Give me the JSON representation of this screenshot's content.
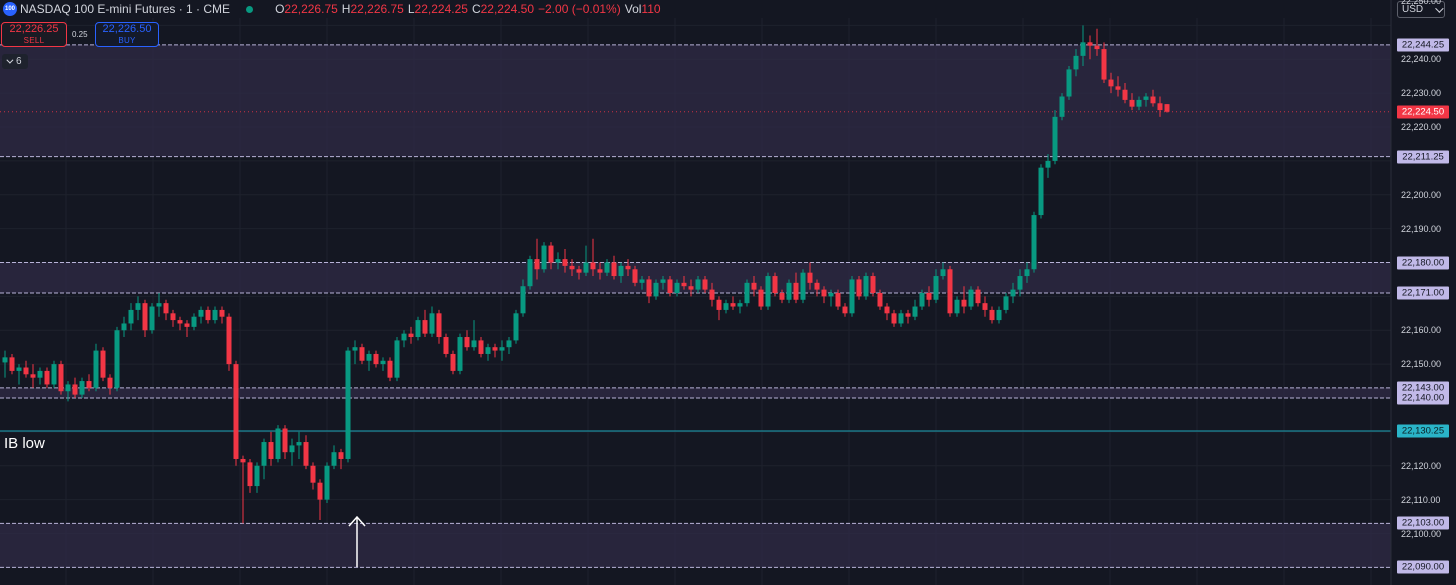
{
  "header": {
    "symbol_icon": "100",
    "title": "NASDAQ 100 E-mini Futures · 1 · CME",
    "status": "market-open-dot",
    "ohlc": {
      "o_label": "O",
      "o": "22,226.75",
      "h_label": "H",
      "h": "22,226.75",
      "l_label": "L",
      "l": "22,224.25",
      "c_label": "C",
      "c": "22,224.50",
      "change": "−2.00 (−0.01%)",
      "vol_label": "Vol",
      "vol": "110"
    },
    "currency": "USD"
  },
  "trading": {
    "sell_price": "22,226.25",
    "sell_label": "SELL",
    "spread": "0.25",
    "buy_price": "22,226.50",
    "buy_label": "BUY"
  },
  "indicators": {
    "collapsed_count": "6"
  },
  "annotations": {
    "ib_low": "IB low"
  },
  "colors": {
    "background": "#141722",
    "bull": "#089981",
    "bear": "#f23645",
    "zone_fill": "#2f2b45",
    "zone_line": "#b8b3d8",
    "ib_line": "#1ba3b5",
    "ib_tag": "#2ab4c8",
    "zone_tag": "#c1b9e8",
    "last_price_tag": "#f23645"
  },
  "price_axis": {
    "ticks": [
      "22,240.00",
      "22,230.00",
      "22,220.00",
      "22,200.00",
      "22,190.00",
      "22,160.00",
      "22,150.00",
      "22,120.00",
      "22,110.00",
      "22,100.00"
    ],
    "top_partial": "22,250.00"
  },
  "levels": [
    {
      "price": 22244.25,
      "label": "22,244.25",
      "kind": "zone"
    },
    {
      "price": 22224.5,
      "label": "22,224.50",
      "kind": "last"
    },
    {
      "price": 22211.25,
      "label": "22,211.25",
      "kind": "zone"
    },
    {
      "price": 22180.0,
      "label": "22,180.00",
      "kind": "zone"
    },
    {
      "price": 22171.0,
      "label": "22,171.00",
      "kind": "zone"
    },
    {
      "price": 22143.0,
      "label": "22,143.00",
      "kind": "zone"
    },
    {
      "price": 22140.0,
      "label": "22,140.00",
      "kind": "zone"
    },
    {
      "price": 22130.25,
      "label": "22,130.25",
      "kind": "ib"
    },
    {
      "price": 22103.0,
      "label": "22,103.00",
      "kind": "zone"
    },
    {
      "price": 22090.0,
      "label": "22,090.00",
      "kind": "zone"
    }
  ],
  "zones": [
    {
      "from": 22244.25,
      "to": 22211.25
    },
    {
      "from": 22180.0,
      "to": 22171.0
    },
    {
      "from": 22143.0,
      "to": 22140.0
    },
    {
      "from": 22103.0,
      "to": 22090.0
    }
  ],
  "chart_data": {
    "type": "candlestick",
    "title": "NASDAQ 100 E-mini Futures · 1 · CME",
    "ylim": [
      22090,
      22250
    ],
    "grid": true,
    "candles": [
      {
        "o": 22150.5,
        "h": 22154,
        "l": 22146,
        "c": 22152
      },
      {
        "o": 22152,
        "h": 22153,
        "l": 22147,
        "c": 22148
      },
      {
        "o": 22148,
        "h": 22150,
        "l": 22144,
        "c": 22149
      },
      {
        "o": 22149,
        "h": 22151,
        "l": 22146,
        "c": 22147
      },
      {
        "o": 22147,
        "h": 22150,
        "l": 22143,
        "c": 22146
      },
      {
        "o": 22146,
        "h": 22149,
        "l": 22144,
        "c": 22148
      },
      {
        "o": 22148,
        "h": 22149,
        "l": 22143,
        "c": 22144
      },
      {
        "o": 22144,
        "h": 22151,
        "l": 22143,
        "c": 22150
      },
      {
        "o": 22150,
        "h": 22151,
        "l": 22141,
        "c": 22142
      },
      {
        "o": 22142,
        "h": 22145,
        "l": 22139,
        "c": 22144
      },
      {
        "o": 22144,
        "h": 22146,
        "l": 22140,
        "c": 22141
      },
      {
        "o": 22141,
        "h": 22146,
        "l": 22140,
        "c": 22145
      },
      {
        "o": 22145,
        "h": 22147,
        "l": 22142,
        "c": 22143
      },
      {
        "o": 22143,
        "h": 22156,
        "l": 22142,
        "c": 22154
      },
      {
        "o": 22154,
        "h": 22155,
        "l": 22145,
        "c": 22146
      },
      {
        "o": 22146,
        "h": 22147,
        "l": 22141,
        "c": 22143
      },
      {
        "o": 22143,
        "h": 22161,
        "l": 22142,
        "c": 22160
      },
      {
        "o": 22160,
        "h": 22164,
        "l": 22158,
        "c": 22162
      },
      {
        "o": 22162,
        "h": 22168,
        "l": 22160,
        "c": 22166
      },
      {
        "o": 22166,
        "h": 22170,
        "l": 22163,
        "c": 22168
      },
      {
        "o": 22168,
        "h": 22169,
        "l": 22158,
        "c": 22160
      },
      {
        "o": 22160,
        "h": 22168,
        "l": 22159,
        "c": 22167
      },
      {
        "o": 22167,
        "h": 22171,
        "l": 22164,
        "c": 22168
      },
      {
        "o": 22168,
        "h": 22169,
        "l": 22163,
        "c": 22165
      },
      {
        "o": 22165,
        "h": 22166,
        "l": 22161,
        "c": 22163
      },
      {
        "o": 22163,
        "h": 22164,
        "l": 22160,
        "c": 22162
      },
      {
        "o": 22162,
        "h": 22163,
        "l": 22158,
        "c": 22161
      },
      {
        "o": 22161,
        "h": 22165,
        "l": 22160,
        "c": 22164
      },
      {
        "o": 22164,
        "h": 22167,
        "l": 22162,
        "c": 22166
      },
      {
        "o": 22166,
        "h": 22167,
        "l": 22162,
        "c": 22163
      },
      {
        "o": 22163,
        "h": 22167,
        "l": 22162,
        "c": 22166
      },
      {
        "o": 22166,
        "h": 22167,
        "l": 22162,
        "c": 22164
      },
      {
        "o": 22164,
        "h": 22165,
        "l": 22148,
        "c": 22150
      },
      {
        "o": 22150,
        "h": 22151,
        "l": 22120,
        "c": 22122
      },
      {
        "o": 22122,
        "h": 22123,
        "l": 22103,
        "c": 22121
      },
      {
        "o": 22121,
        "h": 22122,
        "l": 22112,
        "c": 22114
      },
      {
        "o": 22114,
        "h": 22121,
        "l": 22112,
        "c": 22120
      },
      {
        "o": 22120,
        "h": 22128,
        "l": 22116,
        "c": 22127
      },
      {
        "o": 22127,
        "h": 22130,
        "l": 22120,
        "c": 22122
      },
      {
        "o": 22122,
        "h": 22132,
        "l": 22121,
        "c": 22131
      },
      {
        "o": 22131,
        "h": 22132,
        "l": 22122,
        "c": 22124
      },
      {
        "o": 22124,
        "h": 22128,
        "l": 22120,
        "c": 22126
      },
      {
        "o": 22126,
        "h": 22130,
        "l": 22122,
        "c": 22127
      },
      {
        "o": 22127,
        "h": 22129,
        "l": 22119,
        "c": 22120
      },
      {
        "o": 22120,
        "h": 22121,
        "l": 22113,
        "c": 22115
      },
      {
        "o": 22115,
        "h": 22116,
        "l": 22104,
        "c": 22110
      },
      {
        "o": 22110,
        "h": 22121,
        "l": 22109,
        "c": 22120
      },
      {
        "o": 22120,
        "h": 22126,
        "l": 22119,
        "c": 22124
      },
      {
        "o": 22124,
        "h": 22125,
        "l": 22119,
        "c": 22122
      },
      {
        "o": 22122,
        "h": 22155,
        "l": 22121,
        "c": 22154
      },
      {
        "o": 22154,
        "h": 22157,
        "l": 22150,
        "c": 22155
      },
      {
        "o": 22155,
        "h": 22156,
        "l": 22150,
        "c": 22151
      },
      {
        "o": 22151,
        "h": 22154,
        "l": 22148,
        "c": 22153
      },
      {
        "o": 22153,
        "h": 22154,
        "l": 22149,
        "c": 22150
      },
      {
        "o": 22150,
        "h": 22152,
        "l": 22148,
        "c": 22151
      },
      {
        "o": 22151,
        "h": 22152,
        "l": 22145,
        "c": 22146
      },
      {
        "o": 22146,
        "h": 22158,
        "l": 22145,
        "c": 22157
      },
      {
        "o": 22157,
        "h": 22160,
        "l": 22155,
        "c": 22159
      },
      {
        "o": 22159,
        "h": 22161,
        "l": 22156,
        "c": 22158
      },
      {
        "o": 22158,
        "h": 22164,
        "l": 22157,
        "c": 22163
      },
      {
        "o": 22163,
        "h": 22166,
        "l": 22158,
        "c": 22159
      },
      {
        "o": 22159,
        "h": 22167,
        "l": 22158,
        "c": 22165
      },
      {
        "o": 22165,
        "h": 22166,
        "l": 22156,
        "c": 22158
      },
      {
        "o": 22158,
        "h": 22159,
        "l": 22152,
        "c": 22153
      },
      {
        "o": 22153,
        "h": 22154,
        "l": 22147,
        "c": 22148
      },
      {
        "o": 22148,
        "h": 22159,
        "l": 22147,
        "c": 22158
      },
      {
        "o": 22158,
        "h": 22160,
        "l": 22154,
        "c": 22155
      },
      {
        "o": 22155,
        "h": 22163,
        "l": 22154,
        "c": 22157
      },
      {
        "o": 22157,
        "h": 22158,
        "l": 22152,
        "c": 22153
      },
      {
        "o": 22153,
        "h": 22156,
        "l": 22151,
        "c": 22155
      },
      {
        "o": 22155,
        "h": 22156,
        "l": 22152,
        "c": 22154
      },
      {
        "o": 22154,
        "h": 22157,
        "l": 22151,
        "c": 22155
      },
      {
        "o": 22155,
        "h": 22158,
        "l": 22153,
        "c": 22157
      },
      {
        "o": 22157,
        "h": 22166,
        "l": 22156,
        "c": 22165
      },
      {
        "o": 22165,
        "h": 22175,
        "l": 22164,
        "c": 22173
      },
      {
        "o": 22173,
        "h": 22182,
        "l": 22172,
        "c": 22181
      },
      {
        "o": 22181,
        "h": 22187,
        "l": 22175,
        "c": 22178
      },
      {
        "o": 22178,
        "h": 22186,
        "l": 22177,
        "c": 22185
      },
      {
        "o": 22185,
        "h": 22186,
        "l": 22178,
        "c": 22180
      },
      {
        "o": 22180,
        "h": 22183,
        "l": 22178,
        "c": 22181
      },
      {
        "o": 22181,
        "h": 22184,
        "l": 22177,
        "c": 22179
      },
      {
        "o": 22179,
        "h": 22181,
        "l": 22176,
        "c": 22178
      },
      {
        "o": 22178,
        "h": 22179,
        "l": 22175,
        "c": 22177
      },
      {
        "o": 22177,
        "h": 22185,
        "l": 22176,
        "c": 22180
      },
      {
        "o": 22180,
        "h": 22187,
        "l": 22176,
        "c": 22178
      },
      {
        "o": 22178,
        "h": 22180,
        "l": 22175,
        "c": 22177
      },
      {
        "o": 22177,
        "h": 22181,
        "l": 22176,
        "c": 22180
      },
      {
        "o": 22180,
        "h": 22182,
        "l": 22175,
        "c": 22176
      },
      {
        "o": 22176,
        "h": 22180,
        "l": 22174,
        "c": 22179
      },
      {
        "o": 22179,
        "h": 22181,
        "l": 22176,
        "c": 22178
      },
      {
        "o": 22178,
        "h": 22179,
        "l": 22173,
        "c": 22174
      },
      {
        "o": 22174,
        "h": 22176,
        "l": 22172,
        "c": 22175
      },
      {
        "o": 22175,
        "h": 22176,
        "l": 22168,
        "c": 22170
      },
      {
        "o": 22170,
        "h": 22175,
        "l": 22169,
        "c": 22174
      },
      {
        "o": 22174,
        "h": 22176,
        "l": 22172,
        "c": 22175
      },
      {
        "o": 22175,
        "h": 22176,
        "l": 22170,
        "c": 22171
      },
      {
        "o": 22171,
        "h": 22175,
        "l": 22170,
        "c": 22174
      },
      {
        "o": 22174,
        "h": 22176,
        "l": 22172,
        "c": 22173
      },
      {
        "o": 22173,
        "h": 22175,
        "l": 22170,
        "c": 22172
      },
      {
        "o": 22172,
        "h": 22176,
        "l": 22171,
        "c": 22175
      },
      {
        "o": 22175,
        "h": 22176,
        "l": 22171,
        "c": 22172
      },
      {
        "o": 22172,
        "h": 22174,
        "l": 22167,
        "c": 22169
      },
      {
        "o": 22169,
        "h": 22170,
        "l": 22163,
        "c": 22166
      },
      {
        "o": 22166,
        "h": 22169,
        "l": 22165,
        "c": 22168
      },
      {
        "o": 22168,
        "h": 22170,
        "l": 22166,
        "c": 22167
      },
      {
        "o": 22167,
        "h": 22169,
        "l": 22165,
        "c": 22168
      },
      {
        "o": 22168,
        "h": 22175,
        "l": 22167,
        "c": 22174
      },
      {
        "o": 22174,
        "h": 22176,
        "l": 22170,
        "c": 22172
      },
      {
        "o": 22172,
        "h": 22173,
        "l": 22166,
        "c": 22167
      },
      {
        "o": 22167,
        "h": 22177,
        "l": 22166,
        "c": 22176
      },
      {
        "o": 22176,
        "h": 22177,
        "l": 22170,
        "c": 22171
      },
      {
        "o": 22171,
        "h": 22172,
        "l": 22168,
        "c": 22169
      },
      {
        "o": 22169,
        "h": 22175,
        "l": 22168,
        "c": 22174
      },
      {
        "o": 22174,
        "h": 22177,
        "l": 22168,
        "c": 22169
      },
      {
        "o": 22169,
        "h": 22178,
        "l": 22168,
        "c": 22177
      },
      {
        "o": 22177,
        "h": 22180,
        "l": 22172,
        "c": 22174
      },
      {
        "o": 22174,
        "h": 22175,
        "l": 22170,
        "c": 22172
      },
      {
        "o": 22172,
        "h": 22173,
        "l": 22168,
        "c": 22170
      },
      {
        "o": 22170,
        "h": 22172,
        "l": 22167,
        "c": 22171
      },
      {
        "o": 22171,
        "h": 22172,
        "l": 22166,
        "c": 22167
      },
      {
        "o": 22167,
        "h": 22168,
        "l": 22164,
        "c": 22165
      },
      {
        "o": 22165,
        "h": 22176,
        "l": 22164,
        "c": 22175
      },
      {
        "o": 22175,
        "h": 22176,
        "l": 22169,
        "c": 22170
      },
      {
        "o": 22170,
        "h": 22177,
        "l": 22169,
        "c": 22176
      },
      {
        "o": 22176,
        "h": 22177,
        "l": 22170,
        "c": 22171
      },
      {
        "o": 22171,
        "h": 22172,
        "l": 22166,
        "c": 22167
      },
      {
        "o": 22167,
        "h": 22168,
        "l": 22163,
        "c": 22165
      },
      {
        "o": 22165,
        "h": 22166,
        "l": 22161,
        "c": 22162
      },
      {
        "o": 22162,
        "h": 22166,
        "l": 22161,
        "c": 22165
      },
      {
        "o": 22165,
        "h": 22166,
        "l": 22162,
        "c": 22164
      },
      {
        "o": 22164,
        "h": 22169,
        "l": 22163,
        "c": 22167
      },
      {
        "o": 22167,
        "h": 22172,
        "l": 22166,
        "c": 22171
      },
      {
        "o": 22171,
        "h": 22173,
        "l": 22167,
        "c": 22169
      },
      {
        "o": 22169,
        "h": 22178,
        "l": 22168,
        "c": 22176
      },
      {
        "o": 22176,
        "h": 22180,
        "l": 22175,
        "c": 22178
      },
      {
        "o": 22178,
        "h": 22179,
        "l": 22164,
        "c": 22165
      },
      {
        "o": 22165,
        "h": 22170,
        "l": 22164,
        "c": 22169
      },
      {
        "o": 22169,
        "h": 22173,
        "l": 22165,
        "c": 22167
      },
      {
        "o": 22167,
        "h": 22173,
        "l": 22166,
        "c": 22172
      },
      {
        "o": 22172,
        "h": 22173,
        "l": 22167,
        "c": 22168
      },
      {
        "o": 22168,
        "h": 22170,
        "l": 22164,
        "c": 22166
      },
      {
        "o": 22166,
        "h": 22167,
        "l": 22162,
        "c": 22163
      },
      {
        "o": 22163,
        "h": 22167,
        "l": 22162,
        "c": 22166
      },
      {
        "o": 22166,
        "h": 22171,
        "l": 22165,
        "c": 22170
      },
      {
        "o": 22170,
        "h": 22174,
        "l": 22168,
        "c": 22172
      },
      {
        "o": 22172,
        "h": 22178,
        "l": 22170,
        "c": 22176
      },
      {
        "o": 22176,
        "h": 22180,
        "l": 22174,
        "c": 22178
      },
      {
        "o": 22178,
        "h": 22195,
        "l": 22177,
        "c": 22194
      },
      {
        "o": 22194,
        "h": 22209,
        "l": 22193,
        "c": 22208
      },
      {
        "o": 22208,
        "h": 22212,
        "l": 22205,
        "c": 22210
      },
      {
        "o": 22210,
        "h": 22225,
        "l": 22209,
        "c": 22223
      },
      {
        "o": 22223,
        "h": 22230,
        "l": 22222,
        "c": 22229
      },
      {
        "o": 22229,
        "h": 22238,
        "l": 22228,
        "c": 22237
      },
      {
        "o": 22237,
        "h": 22243,
        "l": 22235,
        "c": 22241
      },
      {
        "o": 22241,
        "h": 22250,
        "l": 22238,
        "c": 22245
      },
      {
        "o": 22245,
        "h": 22247,
        "l": 22240,
        "c": 22244
      },
      {
        "o": 22244,
        "h": 22249,
        "l": 22241,
        "c": 22243
      },
      {
        "o": 22243,
        "h": 22245,
        "l": 22233,
        "c": 22234
      },
      {
        "o": 22234,
        "h": 22236,
        "l": 22230,
        "c": 22232
      },
      {
        "o": 22232,
        "h": 22235,
        "l": 22229,
        "c": 22231
      },
      {
        "o": 22231,
        "h": 22233,
        "l": 22227,
        "c": 22228
      },
      {
        "o": 22228,
        "h": 22230,
        "l": 22225,
        "c": 22226
      },
      {
        "o": 22226,
        "h": 22229,
        "l": 22225,
        "c": 22228
      },
      {
        "o": 22228,
        "h": 22230,
        "l": 22226,
        "c": 22229
      },
      {
        "o": 22229,
        "h": 22231,
        "l": 22226,
        "c": 22227
      },
      {
        "o": 22227,
        "h": 22229,
        "l": 22223,
        "c": 22225
      },
      {
        "o": 22226.75,
        "h": 22226.75,
        "l": 22224.25,
        "c": 22224.5
      }
    ]
  }
}
